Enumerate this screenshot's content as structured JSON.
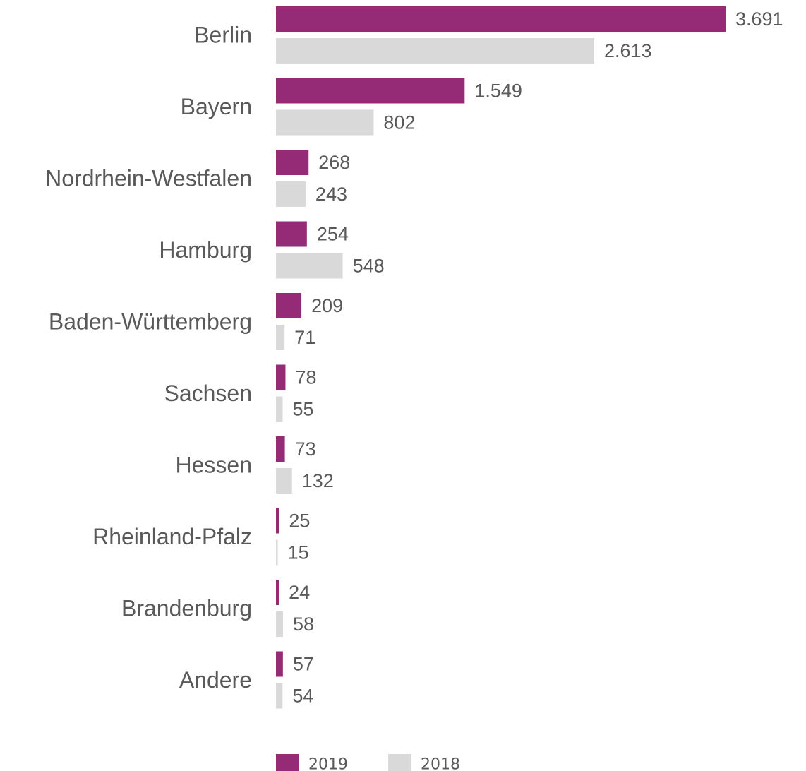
{
  "chart_data": {
    "type": "bar",
    "orientation": "horizontal",
    "categories": [
      "Berlin",
      "Bayern",
      "Nordrhein-Westfalen",
      "Hamburg",
      "Baden-Württemberg",
      "Sachsen",
      "Hessen",
      "Rheinland-Pfalz",
      "Brandenburg",
      "Andere"
    ],
    "series": [
      {
        "name": "2019",
        "color": "#952A77",
        "values": [
          3691,
          1549,
          268,
          254,
          209,
          78,
          73,
          25,
          24,
          57
        ],
        "labels": [
          "3.691",
          "1.549",
          "268",
          "254",
          "209",
          "78",
          "73",
          "25",
          "24",
          "57"
        ]
      },
      {
        "name": "2018",
        "color": "#D9D9D9",
        "values": [
          2613,
          802,
          243,
          548,
          71,
          55,
          132,
          15,
          58,
          54
        ],
        "labels": [
          "2.613",
          "802",
          "243",
          "548",
          "71",
          "55",
          "132",
          "15",
          "58",
          "54"
        ]
      }
    ],
    "xlim": [
      0,
      3691
    ],
    "grid": false,
    "axes_visible": false,
    "legend": {
      "position": "bottom"
    }
  }
}
